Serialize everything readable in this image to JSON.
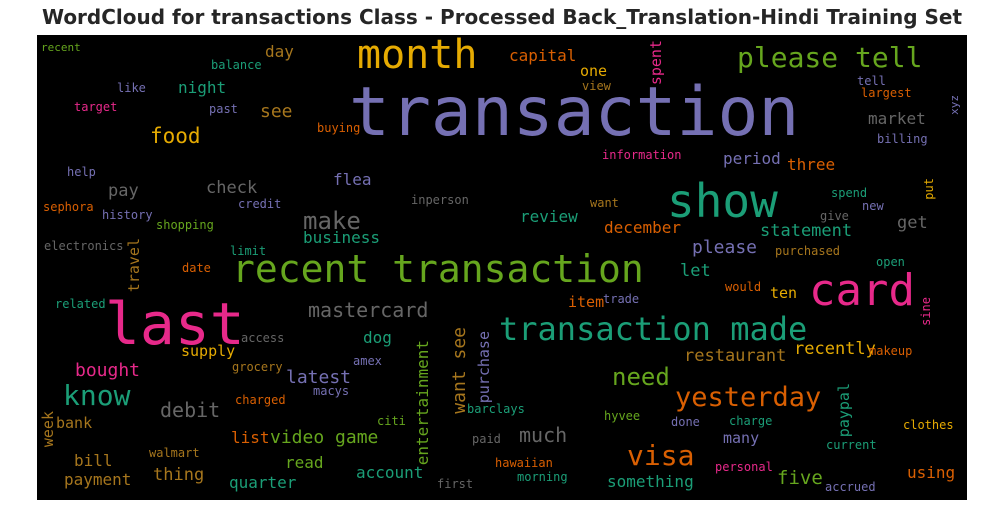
{
  "title": "WordCloud for transactions Class - Processed Back_Translation-Hindi Training Set",
  "words": [
    {
      "t": "transaction",
      "c": "#7570b3"
    },
    {
      "t": "recent transaction",
      "c": "#66a61e"
    },
    {
      "t": "last",
      "c": "#e7298a"
    },
    {
      "t": "show",
      "c": "#1b9e77"
    },
    {
      "t": "card",
      "c": "#e7298a"
    },
    {
      "t": "month",
      "c": "#e6ab02"
    },
    {
      "t": "transaction made",
      "c": "#1b9e77"
    },
    {
      "t": "please tell",
      "c": "#66a61e"
    },
    {
      "t": "yesterday",
      "c": "#d95f02"
    },
    {
      "t": "visa",
      "c": "#d95f02"
    },
    {
      "t": "know",
      "c": "#1b9e77"
    },
    {
      "t": "need",
      "c": "#66a61e"
    },
    {
      "t": "make",
      "c": "#666666"
    },
    {
      "t": "food",
      "c": "#e6ab02"
    },
    {
      "t": "mastercard",
      "c": "#666666"
    },
    {
      "t": "debit",
      "c": "#666666"
    },
    {
      "t": "much",
      "c": "#666666"
    },
    {
      "t": "video game",
      "c": "#66a61e"
    },
    {
      "t": "latest",
      "c": "#7570b3"
    },
    {
      "t": "bought",
      "c": "#e7298a"
    },
    {
      "t": "five",
      "c": "#66a61e"
    },
    {
      "t": "please",
      "c": "#7570b3"
    },
    {
      "t": "statement",
      "c": "#1b9e77"
    },
    {
      "t": "recently",
      "c": "#e6ab02"
    },
    {
      "t": "restaurant",
      "c": "#a6761d"
    },
    {
      "t": "business",
      "c": "#1b9e77"
    },
    {
      "t": "review",
      "c": "#1b9e77"
    },
    {
      "t": "december",
      "c": "#d95f02"
    },
    {
      "t": "check",
      "c": "#666666"
    },
    {
      "t": "pay",
      "c": "#666666"
    },
    {
      "t": "flea",
      "c": "#7570b3"
    },
    {
      "t": "dog",
      "c": "#1b9e77"
    },
    {
      "t": "night",
      "c": "#1b9e77"
    },
    {
      "t": "see",
      "c": "#a6761d"
    },
    {
      "t": "day",
      "c": "#a6761d"
    },
    {
      "t": "capital",
      "c": "#d95f02"
    },
    {
      "t": "one",
      "c": "#e6ab02"
    },
    {
      "t": "market",
      "c": "#666666"
    },
    {
      "t": "period",
      "c": "#7570b3"
    },
    {
      "t": "three",
      "c": "#d95f02"
    },
    {
      "t": "get",
      "c": "#666666"
    },
    {
      "t": "let",
      "c": "#1b9e77"
    },
    {
      "t": "ten",
      "c": "#e6ab02"
    },
    {
      "t": "item",
      "c": "#d95f02"
    },
    {
      "t": "supply",
      "c": "#e6ab02"
    },
    {
      "t": "bank",
      "c": "#a6761d"
    },
    {
      "t": "bill",
      "c": "#a6761d"
    },
    {
      "t": "thing",
      "c": "#a6761d"
    },
    {
      "t": "payment",
      "c": "#a6761d"
    },
    {
      "t": "quarter",
      "c": "#1b9e77"
    },
    {
      "t": "read",
      "c": "#66a61e"
    },
    {
      "t": "account",
      "c": "#1b9e77"
    },
    {
      "t": "list",
      "c": "#d95f02"
    },
    {
      "t": "many",
      "c": "#7570b3"
    },
    {
      "t": "something",
      "c": "#1b9e77"
    },
    {
      "t": "using",
      "c": "#d95f02"
    },
    {
      "t": "clothes",
      "c": "#e6ab02"
    },
    {
      "t": "accrued",
      "c": "#7570b3"
    },
    {
      "t": "current",
      "c": "#1b9e77"
    },
    {
      "t": "personal",
      "c": "#e7298a"
    },
    {
      "t": "morning",
      "c": "#1b9e77"
    },
    {
      "t": "first",
      "c": "#666666"
    },
    {
      "t": "hawaiian",
      "c": "#d95f02"
    },
    {
      "t": "paid",
      "c": "#666666"
    },
    {
      "t": "done",
      "c": "#7570b3"
    },
    {
      "t": "charge",
      "c": "#1b9e77"
    },
    {
      "t": "hyvee",
      "c": "#66a61e"
    },
    {
      "t": "barclays",
      "c": "#1b9e77"
    },
    {
      "t": "citi",
      "c": "#66a61e"
    },
    {
      "t": "walmart",
      "c": "#a6761d"
    },
    {
      "t": "charged",
      "c": "#d95f02"
    },
    {
      "t": "macys",
      "c": "#7570b3"
    },
    {
      "t": "grocery",
      "c": "#a6761d"
    },
    {
      "t": "amex",
      "c": "#7570b3"
    },
    {
      "t": "access",
      "c": "#666666"
    },
    {
      "t": "related",
      "c": "#1b9e77"
    },
    {
      "t": "electronics",
      "c": "#666666"
    },
    {
      "t": "sephora",
      "c": "#d95f02"
    },
    {
      "t": "history",
      "c": "#7570b3"
    },
    {
      "t": "shopping",
      "c": "#66a61e"
    },
    {
      "t": "credit",
      "c": "#7570b3"
    },
    {
      "t": "limit",
      "c": "#1b9e77"
    },
    {
      "t": "date",
      "c": "#d95f02"
    },
    {
      "t": "help",
      "c": "#7570b3"
    },
    {
      "t": "target",
      "c": "#e7298a"
    },
    {
      "t": "like",
      "c": "#7570b3"
    },
    {
      "t": "past",
      "c": "#7570b3"
    },
    {
      "t": "balance",
      "c": "#1b9e77"
    },
    {
      "t": "recent",
      "c": "#66a61e"
    },
    {
      "t": "buying",
      "c": "#d95f02"
    },
    {
      "t": "view",
      "c": "#a6761d"
    },
    {
      "t": "information",
      "c": "#e7298a"
    },
    {
      "t": "inperson",
      "c": "#666666"
    },
    {
      "t": "want",
      "c": "#a6761d"
    },
    {
      "t": "trade",
      "c": "#7570b3"
    },
    {
      "t": "would",
      "c": "#d95f02"
    },
    {
      "t": "purchased",
      "c": "#a6761d"
    },
    {
      "t": "open",
      "c": "#1b9e77"
    },
    {
      "t": "makeup",
      "c": "#d95f02"
    },
    {
      "t": "give",
      "c": "#666666"
    },
    {
      "t": "new",
      "c": "#7570b3"
    },
    {
      "t": "spend",
      "c": "#1b9e77"
    },
    {
      "t": "tell",
      "c": "#7570b3"
    },
    {
      "t": "largest",
      "c": "#d95f02"
    },
    {
      "t": "billing",
      "c": "#7570b3"
    },
    {
      "t": "spent",
      "c": "#e7298a"
    },
    {
      "t": "travel",
      "c": "#a6761d"
    },
    {
      "t": "week",
      "c": "#a6761d"
    },
    {
      "t": "want see",
      "c": "#a6761d"
    },
    {
      "t": "entertainment",
      "c": "#66a61e"
    },
    {
      "t": "purchase",
      "c": "#7570b3"
    },
    {
      "t": "paypal",
      "c": "#1b9e77"
    },
    {
      "t": "xyz",
      "c": "#7570b3"
    },
    {
      "t": "put",
      "c": "#e6ab02"
    },
    {
      "t": "sine",
      "c": "#e7298a"
    }
  ]
}
